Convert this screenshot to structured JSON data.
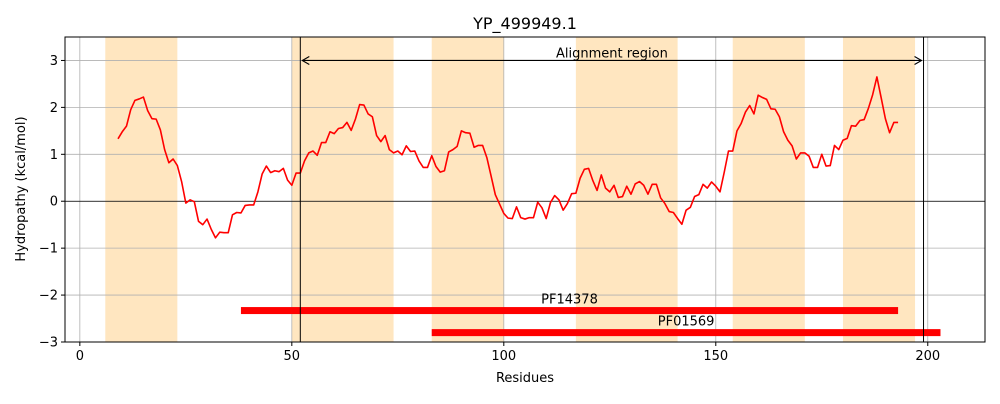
{
  "chart_data": {
    "type": "line",
    "title": "YP_499949.1",
    "xlabel": "Residues",
    "ylabel": "Hydropathy (kcal/mol)",
    "xlim": [
      -3.5,
      213.5
    ],
    "ylim": [
      -3,
      3.5
    ],
    "xticks": [
      0,
      50,
      100,
      150,
      200
    ],
    "yticks": [
      -3,
      -2,
      -1,
      0,
      1,
      2,
      3
    ],
    "grid": true,
    "colors": {
      "line": "#ff0000",
      "band": "#ffe6c0",
      "domain": "#ff0000",
      "grid": "#b0b0b0"
    },
    "highlight_bands": [
      [
        6,
        23
      ],
      [
        50,
        74
      ],
      [
        83,
        100
      ],
      [
        117,
        141
      ],
      [
        154,
        171
      ],
      [
        180,
        197
      ]
    ],
    "alignment_region": {
      "label": "Alignment region",
      "start": 52,
      "end": 199,
      "y": 3
    },
    "domains": [
      {
        "name": "PF14378",
        "start": 38,
        "end": 193,
        "y": -2.33
      },
      {
        "name": "PF01569",
        "start": 83,
        "end": 203,
        "y": -2.8
      }
    ],
    "series": [
      {
        "x": [
          9,
          10,
          11,
          12,
          13,
          14,
          15,
          16,
          17,
          18,
          19,
          20,
          21,
          22,
          23,
          24,
          25,
          26,
          27,
          28,
          29,
          30,
          31,
          32,
          33,
          34,
          35,
          36,
          37,
          38,
          39,
          40,
          41,
          42,
          43,
          44,
          45,
          46,
          47,
          48,
          49,
          50,
          51,
          52,
          53,
          54,
          55,
          56,
          57,
          58,
          59,
          60,
          61,
          62,
          63,
          64,
          65,
          66,
          67,
          68,
          69,
          70,
          71,
          72,
          73,
          74,
          75,
          76,
          77,
          78,
          79,
          80,
          81,
          82,
          83,
          84,
          85,
          86,
          87,
          88,
          89,
          90,
          91,
          92,
          93,
          94,
          95,
          96,
          97,
          98,
          99,
          100,
          101,
          102,
          103,
          104,
          105,
          106,
          107,
          108,
          109,
          110,
          111,
          112,
          113,
          114,
          115,
          116,
          117,
          118,
          119,
          120,
          121,
          122,
          123,
          124,
          125,
          126,
          127,
          128,
          129,
          130,
          131,
          132,
          133,
          134,
          135,
          136,
          137,
          138,
          139,
          140,
          141,
          142,
          143,
          144,
          145,
          146,
          147,
          148,
          149,
          150,
          151,
          152,
          153,
          154,
          155,
          156,
          157,
          158,
          159,
          160,
          161,
          162,
          163,
          164,
          165,
          166,
          167,
          168,
          169,
          170,
          171,
          172,
          173,
          174,
          175,
          176,
          177,
          178,
          179,
          180,
          181,
          182,
          183,
          184,
          185,
          186,
          187,
          188,
          189,
          190,
          191,
          192,
          193
        ],
        "values": [
          1.33,
          1.48,
          1.6,
          1.95,
          2.15,
          2.18,
          2.22,
          1.93,
          1.76,
          1.75,
          1.52,
          1.1,
          0.82,
          0.9,
          0.76,
          0.42,
          -0.04,
          0.03,
          -0.01,
          -0.43,
          -0.5,
          -0.38,
          -0.6,
          -0.78,
          -0.66,
          -0.67,
          -0.67,
          -0.29,
          -0.24,
          -0.25,
          -0.09,
          -0.08,
          -0.08,
          0.2,
          0.58,
          0.75,
          0.61,
          0.65,
          0.63,
          0.7,
          0.45,
          0.34,
          0.6,
          0.6,
          0.86,
          1.03,
          1.07,
          0.98,
          1.25,
          1.25,
          1.48,
          1.44,
          1.55,
          1.57,
          1.68,
          1.51,
          1.75,
          2.06,
          2.05,
          1.86,
          1.8,
          1.4,
          1.27,
          1.4,
          1.1,
          1.03,
          1.07,
          0.99,
          1.18,
          1.06,
          1.07,
          0.86,
          0.72,
          0.72,
          0.97,
          0.74,
          0.62,
          0.65,
          1.05,
          1.1,
          1.17,
          1.5,
          1.46,
          1.45,
          1.15,
          1.19,
          1.19,
          0.93,
          0.54,
          0.14,
          -0.06,
          -0.26,
          -0.36,
          -0.37,
          -0.12,
          -0.35,
          -0.38,
          -0.35,
          -0.35,
          -0.02,
          -0.14,
          -0.37,
          -0.03,
          0.12,
          0.03,
          -0.19,
          -0.05,
          0.16,
          0.17,
          0.49,
          0.68,
          0.7,
          0.44,
          0.23,
          0.56,
          0.28,
          0.2,
          0.34,
          0.08,
          0.1,
          0.32,
          0.15,
          0.37,
          0.42,
          0.34,
          0.15,
          0.36,
          0.36,
          0.07,
          -0.05,
          -0.22,
          -0.24,
          -0.37,
          -0.49,
          -0.19,
          -0.13,
          0.1,
          0.14,
          0.36,
          0.28,
          0.41,
          0.32,
          0.2,
          0.62,
          1.07,
          1.07,
          1.5,
          1.66,
          1.9,
          2.04,
          1.86,
          2.26,
          2.21,
          2.17,
          1.97,
          1.96,
          1.8,
          1.48,
          1.3,
          1.18,
          0.9,
          1.03,
          1.03,
          0.96,
          0.72,
          0.72,
          1.0,
          0.75,
          0.76,
          1.19,
          1.1,
          1.3,
          1.34,
          1.61,
          1.6,
          1.72,
          1.74,
          1.98,
          2.27,
          2.65,
          2.21,
          1.76,
          1.46,
          1.68,
          1.68
        ]
      }
    ]
  }
}
